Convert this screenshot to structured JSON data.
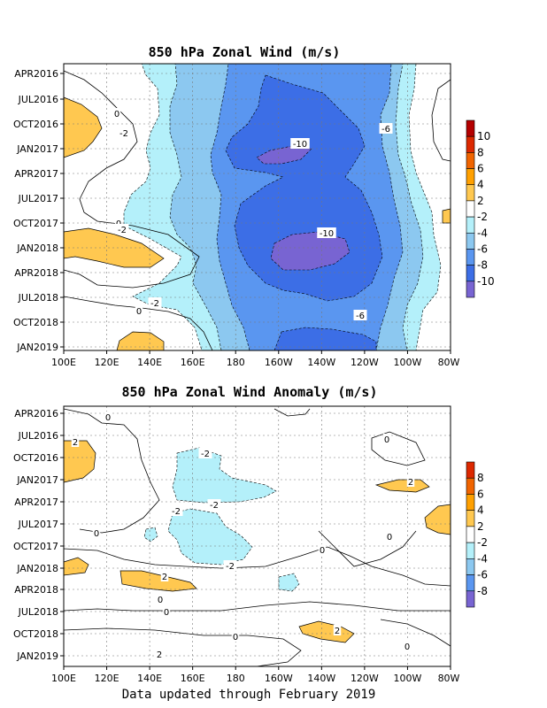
{
  "footer": "Data updated through February 2019",
  "colors": {
    "neg2": "#b4f0fa",
    "neg4": "#8cc8f0",
    "neg6": "#5a96f0",
    "neg8": "#3c6ee6",
    "neg10": "#7864d2",
    "pos2": "#ffc850",
    "pos4": "#ffa000",
    "pos6": "#f06400",
    "pos8": "#dc2800",
    "pos10": "#b40000"
  },
  "chart_data": [
    {
      "type": "heatmap",
      "title": "850 hPa Zonal Wind (m/s)",
      "x_ticks": [
        "100E",
        "120E",
        "140E",
        "160E",
        "180",
        "160W",
        "140W",
        "120W",
        "100W",
        "80W"
      ],
      "y_ticks": [
        "APR2016",
        "JUL2016",
        "OCT2016",
        "JAN2017",
        "APR2017",
        "JUL2017",
        "OCT2017",
        "JAN2018",
        "APR2018",
        "JUL2018",
        "OCT2018",
        "JAN2019"
      ],
      "colorbar_labels": [
        "10",
        "8",
        "6",
        "4",
        "2",
        "-2",
        "-4",
        "-6",
        "-8",
        "-10"
      ],
      "contour_labels": [
        "0",
        "-2",
        "-10",
        "-6",
        "0",
        "-2",
        "-10",
        "-2",
        "-6",
        "0"
      ],
      "bands": [
        {
          "level": -2,
          "row_extents": [
            [
              150,
              192
            ],
            [
              150,
              195
            ],
            [
              148,
              200
            ],
            [
              147,
              202
            ],
            [
              140,
              205
            ],
            [
              128,
              207
            ],
            [
              120,
              204
            ],
            [
              132,
              200
            ],
            [
              150,
              203
            ],
            [
              158,
              205
            ],
            [
              160,
              208
            ],
            [
              160,
              208
            ]
          ]
        },
        {
          "level": -4,
          "row_extents": [
            [
              162,
              188
            ],
            [
              160,
              190
            ],
            [
              158,
              195
            ],
            [
              156,
              196
            ],
            [
              152,
              198
            ],
            [
              143,
              199
            ],
            [
              140,
              198
            ],
            [
              148,
              195
            ],
            [
              160,
              197
            ],
            [
              165,
              200
            ],
            [
              167,
              202
            ],
            [
              168,
              202
            ]
          ]
        },
        {
          "level": -6,
          "row_extents": [
            [
              175,
              182
            ],
            [
              172,
              185
            ],
            [
              168,
              188
            ],
            [
              165,
              190
            ],
            [
              163,
              190
            ],
            [
              160,
              190
            ],
            [
              158,
              190
            ],
            [
              160,
              190
            ],
            [
              168,
              192
            ],
            [
              172,
              193
            ],
            [
              175,
              195
            ],
            [
              176,
              196
            ]
          ]
        },
        {
          "level": -8,
          "row_extents": [
            [
              193,
              182
            ],
            [
              190,
              184
            ],
            [
              182,
              186
            ],
            [
              175,
              188
            ],
            [
              172,
              184
            ],
            [
              175,
              182
            ],
            [
              172,
              186
            ],
            [
              168,
              186
            ],
            [
              178,
              184
            ],
            [
              188,
              186
            ],
            [
              182,
              190
            ],
            [
              182,
              190
            ]
          ]
        },
        {
          "level": -10,
          "row_extents": [
            [
              0,
              0
            ],
            [
              0,
              0
            ],
            [
              0,
              0
            ],
            [
              182,
              200
            ],
            [
              0,
              0
            ],
            [
              0,
              0
            ],
            [
              0,
              0
            ],
            [
              175,
              200
            ],
            [
              177,
              196
            ],
            [
              0,
              0
            ],
            [
              0,
              0
            ],
            [
              0,
              0
            ]
          ]
        }
      ],
      "positive_regions": [
        {
          "level": 2,
          "lon_range": [
            100,
            112
          ],
          "time_range": [
            1.5,
            3.4
          ]
        },
        {
          "level": 2,
          "lon_range": [
            100,
            130
          ],
          "time_range": [
            6.8,
            8.3
          ]
        },
        {
          "level": 2,
          "lon_range": [
            128,
            148
          ],
          "time_range": [
            10.6,
            11.5
          ]
        }
      ]
    },
    {
      "type": "heatmap",
      "title": "850 hPa Zonal Wind Anomaly (m/s)",
      "x_ticks": [
        "100E",
        "120E",
        "140E",
        "160E",
        "180",
        "160W",
        "140W",
        "120W",
        "100W",
        "80W"
      ],
      "y_ticks": [
        "APR2016",
        "JUL2016",
        "OCT2016",
        "JAN2017",
        "APR2017",
        "JUL2017",
        "OCT2017",
        "JAN2018",
        "APR2018",
        "JUL2018",
        "OCT2018",
        "JAN2019"
      ],
      "colorbar_labels": [
        "8",
        "6",
        "4",
        "2",
        "-2",
        "-4",
        "-6",
        "-8"
      ],
      "contour_labels": [
        "0",
        "2",
        "-2",
        "-2",
        "-2",
        "0",
        "-2",
        "0",
        "2",
        "2",
        "0",
        "0",
        "0",
        "2",
        "0",
        "2",
        "0",
        "0"
      ],
      "negative_regions": [
        {
          "level": -2,
          "lon_range": [
            151,
            197
          ],
          "time_range": [
            1.6,
            4.2
          ]
        },
        {
          "level": -2,
          "lon_range": [
            149,
            183
          ],
          "time_range": [
            4.5,
            7.0
          ]
        },
        {
          "level": -2,
          "lon_range": [
            134,
            138
          ],
          "time_range": [
            5.2,
            5.8
          ]
        },
        {
          "level": -2,
          "lon_range": [
            160,
            170
          ],
          "time_range": [
            7.1,
            7.7
          ]
        }
      ],
      "positive_regions": [
        {
          "level": 2,
          "lon_range": [
            100,
            108
          ],
          "time_range": [
            1.4,
            3.2
          ]
        },
        {
          "level": 2,
          "lon_range": [
            128,
            162
          ],
          "time_range": [
            6.9,
            8.0
          ]
        },
        {
          "level": 2,
          "lon_range": [
            100,
            106
          ],
          "time_range": [
            6.8,
            7.6
          ]
        },
        {
          "level": 2,
          "lon_range": [
            82,
            86
          ],
          "time_range": [
            3.6,
            5.0
          ]
        },
        {
          "level": 2,
          "lon_range": [
            112,
            122
          ],
          "time_range": [
            10.1,
            10.7
          ]
        },
        {
          "level": 2,
          "lon_range": [
            123,
            137
          ],
          "time_range": [
            4.0,
            4.4
          ]
        }
      ]
    }
  ]
}
